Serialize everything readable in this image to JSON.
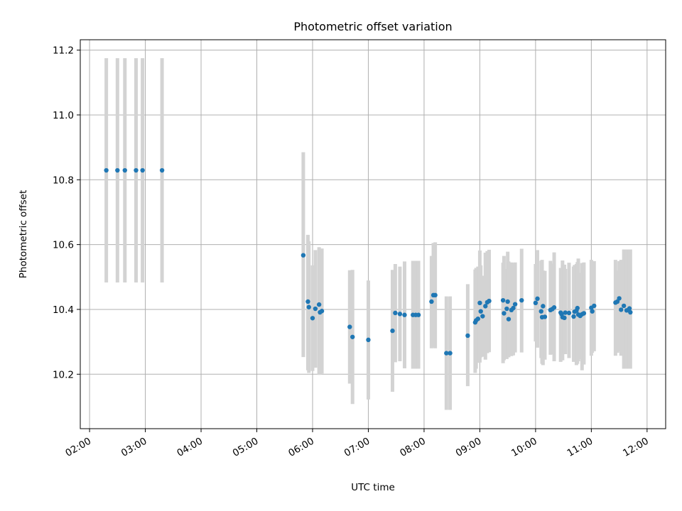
{
  "chart_data": {
    "type": "scatter",
    "title": "Photometric offset variation",
    "xlabel": "UTC time",
    "ylabel": "Photometric offset",
    "x_ticks": [
      "02:00",
      "03:00",
      "04:00",
      "05:00",
      "06:00",
      "07:00",
      "08:00",
      "09:00",
      "10:00",
      "11:00",
      "12:00"
    ],
    "y_ticks": [
      "10.2",
      "10.4",
      "10.6",
      "10.8",
      "11.0",
      "11.2"
    ],
    "xlim": [
      "01:50",
      "12:20"
    ],
    "ylim": [
      10.032,
      11.232
    ],
    "grid": true,
    "colors": {
      "point": "#1f77b4",
      "errorbar": "#d3d3d3",
      "grid": "#b0b0b0"
    },
    "series": [
      {
        "x": [
          "02:18",
          "02:30",
          "02:38",
          "02:50",
          "02:57",
          "03:18",
          "05:50",
          "05:55",
          "05:56",
          "06:00",
          "06:03",
          "06:07",
          "06:08",
          "06:10",
          "06:40",
          "06:43",
          "07:00",
          "07:26",
          "07:29",
          "07:34",
          "07:39",
          "07:48",
          "07:51",
          "07:54",
          "08:08",
          "08:10",
          "08:12",
          "08:24",
          "08:28",
          "08:47",
          "08:55",
          "08:56",
          "08:58",
          "09:00",
          "09:01",
          "09:03",
          "09:06",
          "09:08",
          "09:10",
          "09:25",
          "09:26",
          "09:29",
          "09:30",
          "09:31",
          "09:34",
          "09:36",
          "09:38",
          "09:45",
          "10:00",
          "10:02",
          "10:06",
          "10:07",
          "10:08",
          "10:10",
          "10:16",
          "10:18",
          "10:20",
          "10:27",
          "10:28",
          "10:29",
          "10:31",
          "10:32",
          "10:36",
          "10:41",
          "10:42",
          "10:44",
          "10:45",
          "10:46",
          "10:48",
          "10:50",
          "10:52",
          "11:00",
          "11:01",
          "11:03",
          "11:26",
          "11:28",
          "11:30",
          "11:32",
          "11:35",
          "11:38",
          "11:41",
          "11:42"
        ],
        "y": [
          10.829,
          10.829,
          10.829,
          10.829,
          10.829,
          10.829,
          10.567,
          10.424,
          10.407,
          10.373,
          10.402,
          10.415,
          10.391,
          10.395,
          10.346,
          10.315,
          10.306,
          10.334,
          10.389,
          10.386,
          10.383,
          10.383,
          10.383,
          10.383,
          10.424,
          10.444,
          10.444,
          10.265,
          10.265,
          10.319,
          10.36,
          10.366,
          10.371,
          10.42,
          10.394,
          10.379,
          10.41,
          10.422,
          10.426,
          10.428,
          10.388,
          10.402,
          10.424,
          10.37,
          10.398,
          10.404,
          10.416,
          10.428,
          10.42,
          10.433,
          10.394,
          10.376,
          10.41,
          10.377,
          10.398,
          10.401,
          10.406,
          10.39,
          10.385,
          10.376,
          10.374,
          10.39,
          10.389,
          10.378,
          10.393,
          10.396,
          10.404,
          10.384,
          10.38,
          10.385,
          10.388,
          10.405,
          10.394,
          10.411,
          10.421,
          10.424,
          10.434,
          10.399,
          10.411,
          10.397,
          10.403,
          10.391
        ],
        "yerr_lower": [
          10.483,
          10.483,
          10.483,
          10.483,
          10.483,
          10.483,
          10.253,
          10.212,
          10.204,
          10.21,
          10.22,
          10.198,
          10.2,
          10.202,
          10.171,
          10.108,
          10.122,
          10.146,
          10.237,
          10.24,
          10.218,
          10.217,
          10.217,
          10.217,
          10.28,
          10.283,
          10.28,
          10.09,
          10.09,
          10.163,
          10.204,
          10.217,
          10.235,
          10.236,
          10.252,
          10.254,
          10.245,
          10.265,
          10.268,
          10.234,
          10.243,
          10.247,
          10.269,
          10.252,
          10.256,
          10.258,
          10.267,
          10.267,
          10.301,
          10.282,
          10.25,
          10.232,
          10.228,
          10.245,
          10.26,
          10.262,
          10.24,
          10.238,
          10.243,
          10.243,
          10.263,
          10.262,
          10.25,
          10.238,
          10.252,
          10.228,
          10.232,
          10.24,
          10.247,
          10.212,
          10.23,
          10.257,
          10.266,
          10.271,
          10.257,
          10.266,
          10.271,
          10.257,
          10.217,
          10.217,
          10.217,
          10.217
        ],
        "yerr_upper": [
          11.175,
          11.175,
          11.175,
          11.175,
          11.175,
          11.175,
          10.885,
          10.63,
          10.61,
          10.536,
          10.583,
          10.592,
          10.579,
          10.588,
          10.521,
          10.522,
          10.489,
          10.522,
          10.54,
          10.532,
          10.548,
          10.55,
          10.55,
          10.55,
          10.565,
          10.605,
          10.607,
          10.44,
          10.44,
          10.478,
          10.523,
          10.528,
          10.532,
          10.582,
          10.536,
          10.504,
          10.575,
          10.58,
          10.584,
          10.544,
          10.565,
          10.525,
          10.578,
          10.548,
          10.545,
          10.543,
          10.545,
          10.587,
          10.54,
          10.583,
          10.55,
          10.553,
          10.52,
          10.519,
          10.55,
          10.541,
          10.576,
          10.528,
          10.521,
          10.551,
          10.538,
          10.525,
          10.544,
          10.532,
          10.537,
          10.54,
          10.546,
          10.557,
          10.513,
          10.543,
          10.545,
          10.553,
          10.52,
          10.549,
          10.553,
          10.52,
          10.549,
          10.553,
          10.585,
          10.585,
          10.585,
          10.585
        ]
      }
    ]
  }
}
